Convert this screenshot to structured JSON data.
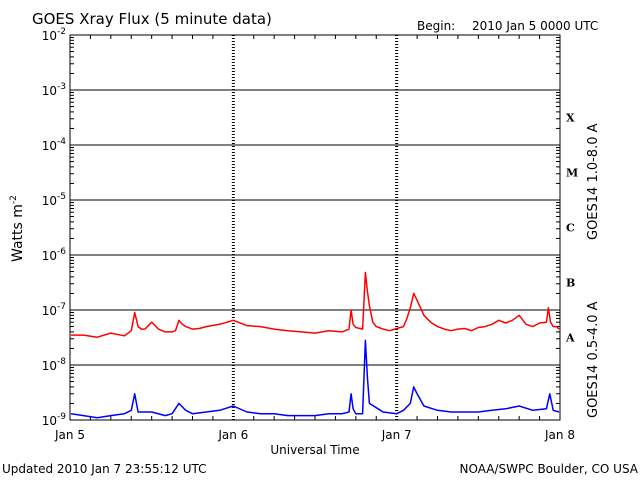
{
  "header": {
    "title": "GOES Xray Flux (5 minute data)",
    "begin_label": "Begin:",
    "begin_value": "2010 Jan 5 0000 UTC"
  },
  "footer": {
    "updated": "Updated 2010 Jan  7 23:55:12 UTC",
    "credit": "NOAA/SWPC Boulder, CO USA"
  },
  "colors": {
    "long": "#ff0000",
    "short": "#0000ff",
    "axis": "#000000"
  },
  "chart_data": {
    "type": "line",
    "xlabel": "Universal Time",
    "ylabel": "Watts m",
    "ylabel_superscript": "-2",
    "yscale": "log",
    "ylim": [
      1e-09,
      0.01
    ],
    "xlim": [
      0,
      72
    ],
    "x_units": "hours since 2010 Jan 5 0000 UTC",
    "x_ticks": [
      {
        "value": 0,
        "label": "Jan 5"
      },
      {
        "value": 24,
        "label": "Jan 6"
      },
      {
        "value": 48,
        "label": "Jan 7"
      },
      {
        "value": 72,
        "label": "Jan 8"
      }
    ],
    "y_ticks": [
      {
        "exp": -9,
        "label": "10",
        "sup": "-9"
      },
      {
        "exp": -8,
        "label": "10",
        "sup": "-8"
      },
      {
        "exp": -7,
        "label": "10",
        "sup": "-7"
      },
      {
        "exp": -6,
        "label": "10",
        "sup": "-6"
      },
      {
        "exp": -5,
        "label": "10",
        "sup": "-5"
      },
      {
        "exp": -4,
        "label": "10",
        "sup": "-4"
      },
      {
        "exp": -3,
        "label": "10",
        "sup": "-3"
      },
      {
        "exp": -2,
        "label": "10",
        "sup": "-2"
      }
    ],
    "flare_classes": [
      {
        "label": "X",
        "exp": -4
      },
      {
        "label": "M",
        "exp": -5
      },
      {
        "label": "C",
        "exp": -6
      },
      {
        "label": "B",
        "exp": -7
      },
      {
        "label": "A",
        "exp": -8
      }
    ],
    "grid": true,
    "series": [
      {
        "name": "GOES14 1.0-8.0 A",
        "key": "long",
        "x": [
          0,
          2,
          4,
          6,
          8,
          9,
          9.5,
          10,
          10.5,
          11,
          12,
          13,
          14,
          15,
          15.5,
          16,
          16.5,
          17,
          18,
          19,
          20,
          22,
          24,
          26,
          28,
          30,
          32,
          34,
          36,
          38,
          40,
          41,
          41.3,
          41.6,
          42,
          43,
          43.4,
          43.7,
          44,
          44.5,
          45,
          46,
          47,
          48,
          49,
          49.5,
          50,
          50.5,
          51,
          52,
          53,
          54,
          55,
          56,
          57,
          58,
          59,
          60,
          61,
          62,
          63,
          64,
          65,
          66,
          67,
          68,
          69,
          70,
          70.3,
          70.6,
          71,
          71.5,
          72
        ],
        "y": [
          3.5e-08,
          3.5e-08,
          3.2e-08,
          3.8e-08,
          3.4e-08,
          4.2e-08,
          9e-08,
          5e-08,
          4.5e-08,
          4.5e-08,
          6e-08,
          4.5e-08,
          4e-08,
          4e-08,
          4.2e-08,
          6.5e-08,
          5.5e-08,
          5e-08,
          4.5e-08,
          4.6e-08,
          5e-08,
          5.5e-08,
          6.5e-08,
          5.2e-08,
          5e-08,
          4.5e-08,
          4.2e-08,
          4e-08,
          3.8e-08,
          4.2e-08,
          4e-08,
          4.5e-08,
          1e-07,
          5.5e-08,
          4.8e-08,
          4.5e-08,
          4.8e-07,
          2.2e-07,
          1.2e-07,
          6e-08,
          5e-08,
          4.5e-08,
          4.2e-08,
          4.6e-08,
          5e-08,
          7e-08,
          1.1e-07,
          2e-07,
          1.5e-07,
          8e-08,
          6e-08,
          5e-08,
          4.5e-08,
          4.2e-08,
          4.5e-08,
          4.6e-08,
          4.2e-08,
          4.8e-08,
          5e-08,
          5.5e-08,
          6.5e-08,
          5.8e-08,
          6.5e-08,
          8e-08,
          5.5e-08,
          5e-08,
          5.8e-08,
          6e-08,
          1.1e-07,
          6e-08,
          5e-08,
          5e-08,
          4.5e-08
        ]
      },
      {
        "name": "GOES14 0.5-4.0 A",
        "key": "short",
        "x": [
          0,
          2,
          4,
          6,
          8,
          9,
          9.5,
          10,
          12,
          14,
          15,
          16,
          17,
          18,
          20,
          22,
          24,
          26,
          28,
          30,
          32,
          34,
          36,
          38,
          40,
          41,
          41.3,
          41.6,
          42,
          43,
          43.4,
          43.7,
          44,
          46,
          48,
          49,
          50,
          50.5,
          51,
          52,
          54,
          56,
          58,
          60,
          62,
          64,
          66,
          68,
          70,
          70.5,
          71,
          72
        ],
        "y": [
          1.3e-09,
          1.2e-09,
          1.1e-09,
          1.2e-09,
          1.3e-09,
          1.5e-09,
          3e-09,
          1.4e-09,
          1.4e-09,
          1.2e-09,
          1.3e-09,
          2e-09,
          1.5e-09,
          1.3e-09,
          1.4e-09,
          1.5e-09,
          1.8e-09,
          1.4e-09,
          1.3e-09,
          1.3e-09,
          1.2e-09,
          1.2e-09,
          1.2e-09,
          1.3e-09,
          1.3e-09,
          1.4e-09,
          3e-09,
          1.6e-09,
          1.3e-09,
          1.3e-09,
          2.8e-08,
          6e-09,
          2e-09,
          1.4e-09,
          1.3e-09,
          1.5e-09,
          2e-09,
          4e-09,
          3e-09,
          1.8e-09,
          1.5e-09,
          1.4e-09,
          1.4e-09,
          1.4e-09,
          1.5e-09,
          1.6e-09,
          1.8e-09,
          1.5e-09,
          1.6e-09,
          3e-09,
          1.5e-09,
          1.4e-09
        ]
      }
    ]
  }
}
